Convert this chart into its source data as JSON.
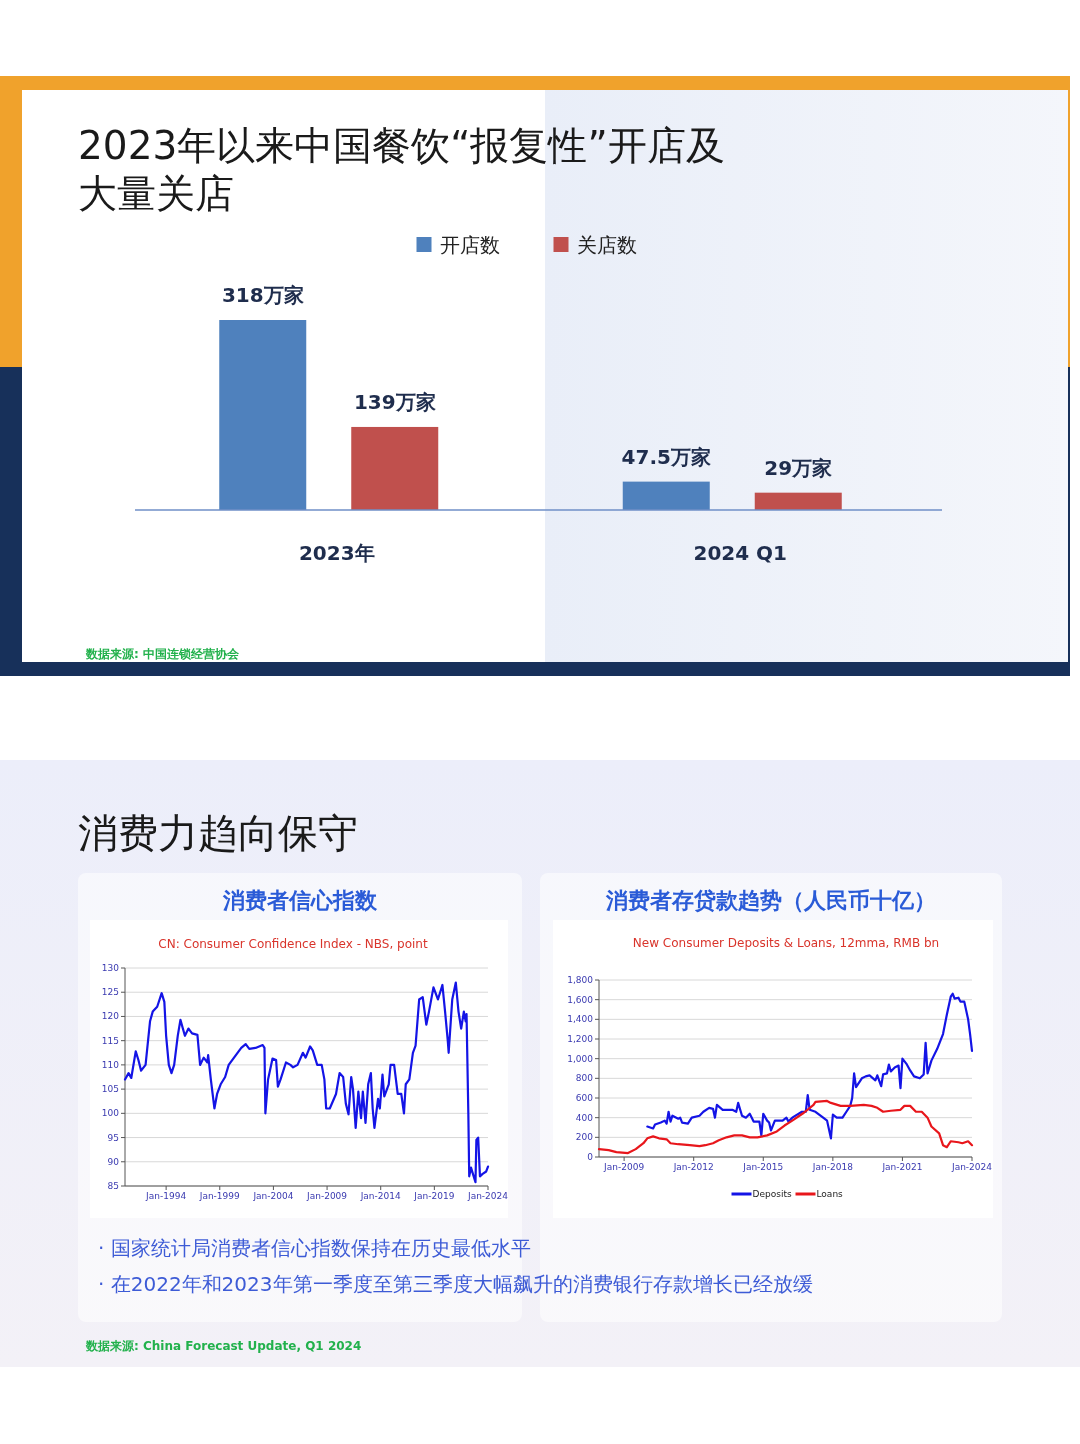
{
  "chart_data": [
    {
      "type": "bar",
      "title": "2023年以来中国餐饮“报复性”开店及大量关店",
      "categories": [
        "2023年",
        "2024 Q1"
      ],
      "legend": "top",
      "series": [
        {
          "name": "开店数",
          "color": "#4f81bd",
          "values": [
            318,
            47.5
          ],
          "value_labels": [
            "318万家",
            "47.5万家"
          ]
        },
        {
          "name": "关店数",
          "color": "#c0504d",
          "values": [
            139,
            29
          ],
          "value_labels": [
            "139万家",
            "29万家"
          ]
        }
      ],
      "annotations": [
        "数据来源: 中国连锁经营协会"
      ]
    },
    {
      "type": "line",
      "title": "消费者信心指数",
      "subtitle": "CN: Consumer Confidence Index - NBS, point",
      "grid": "y",
      "xlim": [
        "1990-03",
        "2024-01"
      ],
      "ylim": [
        85,
        130
      ],
      "xticks": [
        {
          "value": "1994-01",
          "label": "Jan-1994"
        },
        {
          "value": "1999-01",
          "label": "Jan-1999"
        },
        {
          "value": "2004-01",
          "label": "Jan-2004"
        },
        {
          "value": "2009-01",
          "label": "Jan-2009"
        },
        {
          "value": "2014-01",
          "label": "Jan-2014"
        },
        {
          "value": "2019-01",
          "label": "Jan-2019"
        },
        {
          "value": "2024-01",
          "label": "Jan-2024"
        }
      ],
      "yticks": [
        85,
        90,
        95,
        100,
        105,
        110,
        115,
        120,
        125,
        130
      ],
      "series": [
        {
          "color": "#1414e6",
          "x": [
            "1990-03",
            "1990-07",
            "1990-10",
            "1991-03",
            "1991-06",
            "1991-09",
            "1992-02",
            "1992-07",
            "1992-10",
            "1993-03",
            "1993-08",
            "1993-11",
            "1994-01",
            "1994-04",
            "1994-07",
            "1994-10",
            "1995-02",
            "1995-05",
            "1995-10",
            "1996-02",
            "1996-06",
            "1996-12",
            "1997-03",
            "1997-07",
            "1997-11",
            "1997-12",
            "1998-03",
            "1998-07",
            "1998-10",
            "1999-02",
            "1999-07",
            "1999-11",
            "2000-07",
            "2001-01",
            "2001-06",
            "2001-10",
            "2002-05",
            "2003-01",
            "2003-03",
            "2003-04",
            "2003-07",
            "2003-12",
            "2004-04",
            "2004-06",
            "2004-09",
            "2005-03",
            "2005-08",
            "2005-11",
            "2006-04",
            "2006-10",
            "2007-01",
            "2007-06",
            "2007-09",
            "2008-02",
            "2008-07",
            "2008-10",
            "2008-12",
            "2009-04",
            "2009-11",
            "2010-03",
            "2010-07",
            "2010-10",
            "2011-01",
            "2011-04",
            "2011-06",
            "2011-09",
            "2011-12",
            "2012-03",
            "2012-05",
            "2012-08",
            "2012-11",
            "2013-02",
            "2013-04",
            "2013-06",
            "2013-10",
            "2013-12",
            "2014-03",
            "2014-05",
            "2014-10",
            "2014-12",
            "2015-04",
            "2015-08",
            "2015-12",
            "2016-03",
            "2016-05",
            "2016-09",
            "2017-01",
            "2017-04",
            "2017-08",
            "2017-12",
            "2018-04",
            "2018-07",
            "2018-12",
            "2019-05",
            "2019-10",
            "2020-01",
            "2020-04",
            "2020-05",
            "2020-09",
            "2021-01",
            "2021-04",
            "2021-07",
            "2021-10",
            "2021-12",
            "2022-01",
            "2022-03",
            "2022-04",
            "2022-06",
            "2022-09",
            "2022-11",
            "2022-12",
            "2023-02",
            "2023-04",
            "2023-07",
            "2023-11",
            "2024-01"
          ],
          "values": [
            107,
            108.3,
            107.3,
            112.8,
            111,
            108.8,
            110,
            119,
            121,
            122,
            124.8,
            123,
            116,
            110,
            108.3,
            110,
            116,
            119.3,
            116,
            117.5,
            116.5,
            116.2,
            110,
            111.5,
            110.5,
            112,
            107,
            101,
            104,
            106,
            107.5,
            110,
            112,
            113.5,
            114.3,
            113.3,
            113.5,
            114.1,
            113.5,
            100,
            107,
            111.3,
            111,
            105.5,
            107,
            110.5,
            110,
            109.5,
            110,
            112.5,
            111.5,
            113.8,
            113,
            110,
            110,
            107,
            101,
            101,
            104,
            108.3,
            107.5,
            102,
            99.8,
            107.5,
            105,
            97,
            104.5,
            99,
            104.5,
            98,
            106,
            108.3,
            101,
            97,
            103,
            101,
            108,
            103.5,
            106,
            110,
            110,
            104,
            104,
            100,
            106,
            107,
            112.5,
            114,
            123.5,
            124,
            118.3,
            121,
            126,
            123.5,
            126.5,
            121,
            115,
            112.5,
            123.5,
            127,
            121,
            117.5,
            121,
            119,
            120.5,
            100,
            87,
            88.8,
            87,
            85.8,
            94.5,
            95,
            87,
            87.5,
            88,
            89
          ]
        }
      ],
      "annotations": [
        "消费力趋向保守",
        "· 国家统计局消费者信心指数保持在历史最低水平",
        "· 在2022年和2023年第一季度至第三季度大幅飙升的消费银行存款增长已经放缓",
        "数据来源: China Forecast Update, Q1 2024"
      ]
    },
    {
      "type": "line",
      "title": "消费者存贷款趋势（人民币十亿）",
      "subtitle": "New Consumer Deposits & Loans, 12mma, RMB bn",
      "grid": "y",
      "legend": "bottom",
      "xlim": [
        "2007-12",
        "2024-01"
      ],
      "ylim": [
        0,
        1800
      ],
      "xticks": [
        {
          "value": "2009-01",
          "label": "Jan-2009"
        },
        {
          "value": "2012-01",
          "label": "Jan-2012"
        },
        {
          "value": "2015-01",
          "label": "Jan-2015"
        },
        {
          "value": "2018-01",
          "label": "Jan-2018"
        },
        {
          "value": "2021-01",
          "label": "Jan-2021"
        },
        {
          "value": "2024-01",
          "label": "Jan-2024"
        }
      ],
      "yticks": [
        0,
        200,
        400,
        600,
        800,
        {
          "value": 1000,
          "label": "1,000"
        },
        {
          "value": 1200,
          "label": "1,200"
        },
        {
          "value": 1400,
          "label": "1,400"
        },
        {
          "value": 1600,
          "label": "1,600"
        },
        {
          "value": 1800,
          "label": "1,800"
        }
      ],
      "series": [
        {
          "name": "Deposits",
          "color": "#1414e6",
          "x": [
            "2010-01",
            "2010-04",
            "2010-05",
            "2010-08",
            "2010-10",
            "2010-11",
            "2010-12",
            "2011-01",
            "2011-02",
            "2011-05",
            "2011-06",
            "2011-07",
            "2011-10",
            "2011-12",
            "2012-04",
            "2012-06",
            "2012-09",
            "2012-11",
            "2012-12",
            "2013-01",
            "2013-04",
            "2013-09",
            "2013-11",
            "2013-12",
            "2014-02",
            "2014-04",
            "2014-06",
            "2014-08",
            "2014-11",
            "2014-12",
            "2015-01",
            "2015-03",
            "2015-04",
            "2015-05",
            "2015-07",
            "2015-11",
            "2016-01",
            "2016-02",
            "2016-04",
            "2016-09",
            "2016-11",
            "2016-12",
            "2017-01",
            "2017-04",
            "2017-08",
            "2017-10",
            "2017-12",
            "2018-01",
            "2018-03",
            "2018-06",
            "2018-08",
            "2018-10",
            "2018-11",
            "2018-12",
            "2019-01",
            "2019-04",
            "2019-06",
            "2019-08",
            "2019-11",
            "2019-12",
            "2020-02",
            "2020-03",
            "2020-05",
            "2020-06",
            "2020-07",
            "2020-09",
            "2020-11",
            "2020-12",
            "2021-01",
            "2021-03",
            "2021-05",
            "2021-07",
            "2021-10",
            "2021-12",
            "2022-01",
            "2022-02",
            "2022-04",
            "2022-07",
            "2022-10",
            "2022-12",
            "2023-02",
            "2023-03",
            "2023-04",
            "2023-06",
            "2023-07",
            "2023-09",
            "2023-11",
            "2023-12",
            "2024-01"
          ],
          "values": [
            310,
            290,
            330,
            350,
            370,
            340,
            460,
            360,
            420,
            390,
            400,
            350,
            340,
            400,
            420,
            460,
            500,
            490,
            400,
            530,
            480,
            480,
            460,
            550,
            420,
            400,
            440,
            360,
            360,
            220,
            440,
            370,
            350,
            270,
            370,
            370,
            400,
            360,
            400,
            460,
            460,
            630,
            480,
            460,
            400,
            370,
            190,
            430,
            400,
            400,
            460,
            520,
            600,
            850,
            710,
            800,
            820,
            830,
            780,
            830,
            720,
            840,
            850,
            940,
            870,
            910,
            930,
            700,
            1000,
            950,
            880,
            820,
            800,
            840,
            1160,
            850,
            980,
            1100,
            1250,
            1450,
            1630,
            1660,
            1610,
            1620,
            1580,
            1580,
            1400,
            1250,
            1080
          ]
        },
        {
          "name": "Loans",
          "color": "#e8161b",
          "x": [
            "2007-12",
            "2008-05",
            "2008-09",
            "2009-03",
            "2009-07",
            "2009-11",
            "2010-01",
            "2010-04",
            "2010-07",
            "2010-11",
            "2011-01",
            "2011-05",
            "2011-11",
            "2012-04",
            "2012-07",
            "2012-11",
            "2013-02",
            "2013-06",
            "2013-10",
            "2014-02",
            "2014-06",
            "2014-10",
            "2015-03",
            "2015-08",
            "2015-12",
            "2016-04",
            "2016-10",
            "2017-03",
            "2017-04",
            "2017-10",
            "2017-12",
            "2018-05",
            "2018-10",
            "2019-05",
            "2019-09",
            "2019-12",
            "2020-03",
            "2020-07",
            "2020-12",
            "2021-02",
            "2021-05",
            "2021-08",
            "2021-11",
            "2022-02",
            "2022-04",
            "2022-08",
            "2022-10",
            "2022-12",
            "2023-02",
            "2023-06",
            "2023-08",
            "2023-11",
            "2024-01"
          ],
          "values": [
            80,
            70,
            50,
            40,
            80,
            140,
            190,
            210,
            190,
            180,
            140,
            130,
            120,
            110,
            120,
            140,
            170,
            200,
            220,
            220,
            200,
            200,
            220,
            260,
            320,
            370,
            450,
            530,
            560,
            570,
            550,
            520,
            520,
            530,
            520,
            500,
            460,
            470,
            480,
            520,
            520,
            460,
            460,
            400,
            310,
            240,
            120,
            100,
            160,
            150,
            140,
            160,
            120
          ]
        }
      ]
    }
  ]
}
